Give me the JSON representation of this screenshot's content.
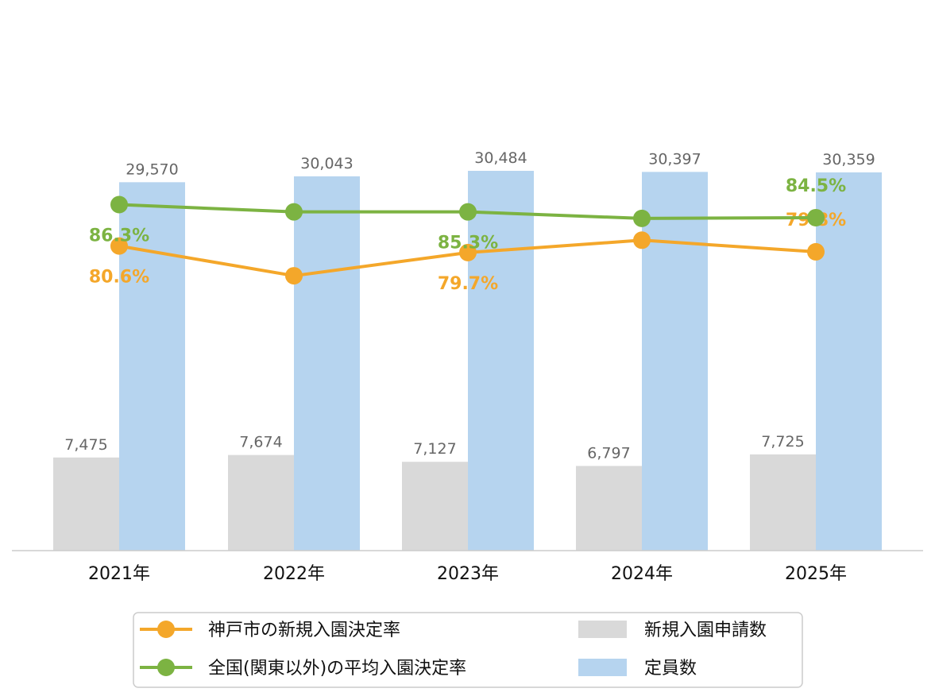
{
  "chart_data": {
    "type": "bar",
    "categories": [
      "2021年",
      "2022年",
      "2023年",
      "2024年",
      "2025年"
    ],
    "bar_series": [
      {
        "name": "新規入園申請数",
        "values": [
          7475,
          7674,
          7127,
          6797,
          7725
        ],
        "labels": [
          "7,475",
          "7,674",
          "7,127",
          "6,797",
          "7,725"
        ],
        "color": "#d9d9d9"
      },
      {
        "name": "定員数",
        "values": [
          29570,
          30043,
          30484,
          30397,
          30359
        ],
        "labels": [
          "29,570",
          "30,043",
          "30,484",
          "30,397",
          "30,359"
        ],
        "color": "#b6d4ef"
      }
    ],
    "line_series": [
      {
        "name": "神戸市の新規入園決定率",
        "values": [
          80.6,
          76.5,
          79.7,
          81.4,
          79.8
        ],
        "labels": [
          "80.6%",
          "",
          "79.7%",
          "",
          "79.8%"
        ],
        "color": "#f4a72a"
      },
      {
        "name": "全国(関東以外)の平均入園決定率",
        "values": [
          86.3,
          85.3,
          85.3,
          84.4,
          84.5
        ],
        "labels": [
          "86.3%",
          "",
          "85.3%",
          "",
          "84.5%"
        ],
        "color": "#7cb342"
      }
    ],
    "bar_axis": {
      "min": 0,
      "max": 30484
    },
    "line_axis": {
      "min": 0,
      "max": 100
    },
    "grid": false,
    "legend_position": "bottom"
  },
  "legend": {
    "items": [
      {
        "label": "神戸市の新規入園決定率",
        "kind": "line",
        "color": "#f4a72a"
      },
      {
        "label": "新規入園申請数",
        "kind": "box",
        "color": "#d9d9d9"
      },
      {
        "label": "全国(関東以外)の平均入園決定率",
        "kind": "line",
        "color": "#7cb342"
      },
      {
        "label": "定員数",
        "kind": "box",
        "color": "#b6d4ef"
      }
    ]
  }
}
